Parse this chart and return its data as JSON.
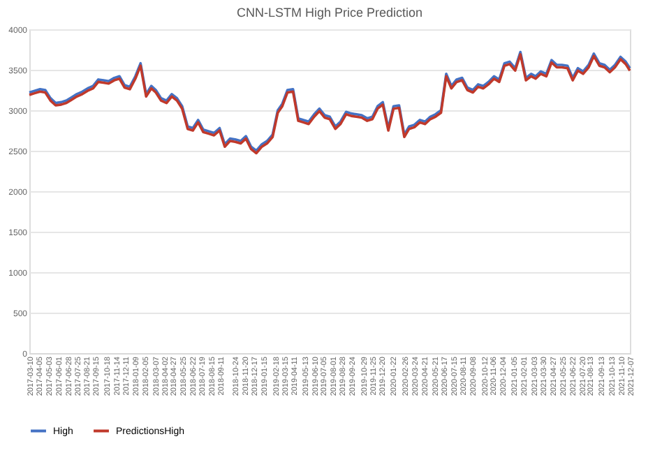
{
  "chart_data": {
    "type": "line",
    "title": "CNN-LSTM High Price Prediction",
    "x": [
      "2017-03-10",
      "2017-03-25",
      "2017-04-10",
      "2017-04-25",
      "2017-05-10",
      "2017-05-25",
      "2017-06-10",
      "2017-06-25",
      "2017-07-10",
      "2017-07-25",
      "2017-08-10",
      "2017-08-25",
      "2017-09-10",
      "2017-09-25",
      "2017-10-10",
      "2017-10-25",
      "2017-11-10",
      "2017-11-25",
      "2017-12-10",
      "2017-12-25",
      "2018-01-10",
      "2018-01-25",
      "2018-02-10",
      "2018-02-25",
      "2018-03-10",
      "2018-03-25",
      "2018-04-10",
      "2018-04-25",
      "2018-05-10",
      "2018-05-25",
      "2018-06-10",
      "2018-06-25",
      "2018-07-10",
      "2018-07-25",
      "2018-08-10",
      "2018-08-25",
      "2018-09-10",
      "2018-09-25",
      "2018-10-10",
      "2018-10-25",
      "2018-11-10",
      "2018-11-25",
      "2018-12-10",
      "2018-12-25",
      "2019-01-10",
      "2019-01-25",
      "2019-02-10",
      "2019-02-25",
      "2019-03-10",
      "2019-03-25",
      "2019-04-10",
      "2019-04-25",
      "2019-05-10",
      "2019-05-25",
      "2019-06-10",
      "2019-06-25",
      "2019-07-10",
      "2019-07-25",
      "2019-08-10",
      "2019-08-25",
      "2019-09-10",
      "2019-09-25",
      "2019-10-10",
      "2019-10-25",
      "2019-11-10",
      "2019-11-25",
      "2019-12-10",
      "2019-12-25",
      "2020-01-10",
      "2020-01-25",
      "2020-02-10",
      "2020-02-25",
      "2020-03-10",
      "2020-03-25",
      "2020-04-10",
      "2020-04-25",
      "2020-05-10",
      "2020-05-25",
      "2020-06-10",
      "2020-06-25",
      "2020-07-10",
      "2020-07-25",
      "2020-08-10",
      "2020-08-25",
      "2020-09-10",
      "2020-09-25",
      "2020-10-10",
      "2020-10-25",
      "2020-11-10",
      "2020-11-25",
      "2020-12-10",
      "2020-12-25",
      "2021-01-10",
      "2021-01-25",
      "2021-02-10",
      "2021-02-25",
      "2021-03-10",
      "2021-03-25",
      "2021-04-10",
      "2021-04-25",
      "2021-05-10",
      "2021-05-25",
      "2021-06-10",
      "2021-06-25",
      "2021-07-10",
      "2021-07-25",
      "2021-08-10",
      "2021-08-25",
      "2021-09-10",
      "2021-09-25",
      "2021-10-10",
      "2021-10-25",
      "2021-11-10",
      "2021-11-25",
      "2021-12-07"
    ],
    "series": [
      {
        "name": "High",
        "color": "#4472c4",
        "values": [
          3220,
          3240,
          3260,
          3250,
          3150,
          3090,
          3100,
          3120,
          3160,
          3200,
          3230,
          3270,
          3300,
          3380,
          3370,
          3360,
          3400,
          3420,
          3310,
          3290,
          3420,
          3580,
          3200,
          3300,
          3250,
          3150,
          3120,
          3200,
          3150,
          3050,
          2800,
          2780,
          2880,
          2760,
          2740,
          2720,
          2780,
          2580,
          2650,
          2640,
          2620,
          2680,
          2550,
          2500,
          2580,
          2620,
          2700,
          3000,
          3080,
          3250,
          3260,
          2900,
          2880,
          2860,
          2950,
          3020,
          2940,
          2920,
          2800,
          2860,
          2980,
          2960,
          2950,
          2940,
          2900,
          2920,
          3050,
          3100,
          2780,
          3050,
          3060,
          2700,
          2800,
          2820,
          2880,
          2860,
          2920,
          2950,
          3000,
          3450,
          3300,
          3380,
          3400,
          3280,
          3250,
          3320,
          3300,
          3350,
          3420,
          3380,
          3580,
          3600,
          3520,
          3720,
          3400,
          3450,
          3420,
          3480,
          3450,
          3620,
          3560,
          3560,
          3550,
          3400,
          3520,
          3480,
          3560,
          3700,
          3580,
          3560,
          3500,
          3560,
          3660,
          3600,
          3520
        ]
      },
      {
        "name": "PredictionsHigh",
        "color": "#c0392b",
        "values": [
          3190,
          3210,
          3230,
          3220,
          3120,
          3060,
          3070,
          3090,
          3130,
          3170,
          3200,
          3240,
          3270,
          3350,
          3340,
          3330,
          3370,
          3390,
          3280,
          3260,
          3390,
          3550,
          3170,
          3270,
          3220,
          3120,
          3090,
          3170,
          3120,
          3020,
          2770,
          2750,
          2850,
          2730,
          2710,
          2690,
          2750,
          2550,
          2620,
          2610,
          2590,
          2650,
          2520,
          2470,
          2550,
          2590,
          2670,
          2970,
          3050,
          3220,
          3230,
          2870,
          2850,
          2830,
          2920,
          2990,
          2910,
          2890,
          2770,
          2830,
          2950,
          2930,
          2920,
          2910,
          2870,
          2890,
          3020,
          3070,
          2750,
          3020,
          3030,
          2670,
          2770,
          2790,
          2850,
          2830,
          2890,
          2920,
          2970,
          3420,
          3270,
          3350,
          3370,
          3250,
          3220,
          3290,
          3270,
          3320,
          3390,
          3350,
          3550,
          3570,
          3490,
          3690,
          3370,
          3420,
          3390,
          3450,
          3420,
          3590,
          3530,
          3530,
          3520,
          3370,
          3490,
          3450,
          3530,
          3670,
          3550,
          3530,
          3470,
          3530,
          3630,
          3570,
          3490
        ]
      }
    ],
    "xlim": [
      "2017-03-10",
      "2021-12-07"
    ],
    "xticks": [
      "2017-03-10",
      "2017-04-05",
      "2017-05-03",
      "2017-06-01",
      "2017-06-28",
      "2017-07-25",
      "2017-08-21",
      "2017-09-15",
      "2017-10-18",
      "2017-11-14",
      "2017-12-11",
      "2018-01-09",
      "2018-02-05",
      "2018-03-07",
      "2018-04-02",
      "2018-04-27",
      "2018-05-25",
      "2018-06-22",
      "2018-07-19",
      "2018-08-15",
      "2018-09-11",
      "2018-10-24",
      "2018-11-20",
      "2018-12-17",
      "2019-01-15",
      "2019-02-18",
      "2019-03-15",
      "2019-04-11",
      "2019-05-13",
      "2019-06-10",
      "2019-07-05",
      "2019-08-01",
      "2019-08-28",
      "2019-09-24",
      "2019-10-29",
      "2019-11-25",
      "2019-12-20",
      "2020-01-22",
      "2020-02-26",
      "2020-03-24",
      "2020-04-21",
      "2020-05-21",
      "2020-06-17",
      "2020-07-15",
      "2020-08-11",
      "2020-09-08",
      "2020-10-12",
      "2020-11-06",
      "2020-12-04",
      "2021-01-05",
      "2021-02-01",
      "2021-03-03",
      "2021-03-30",
      "2021-04-27",
      "2021-05-25",
      "2021-06-22",
      "2021-07-20",
      "2021-08-13",
      "2021-09-13",
      "2021-10-13",
      "2021-11-10",
      "2021-12-07"
    ],
    "ylim": [
      0,
      4000
    ],
    "yticks": [
      0,
      500,
      1000,
      1500,
      2000,
      2500,
      3000,
      3500,
      4000
    ],
    "grid": "y",
    "legend": "bottom",
    "marker": "none",
    "line_style": "solid"
  }
}
